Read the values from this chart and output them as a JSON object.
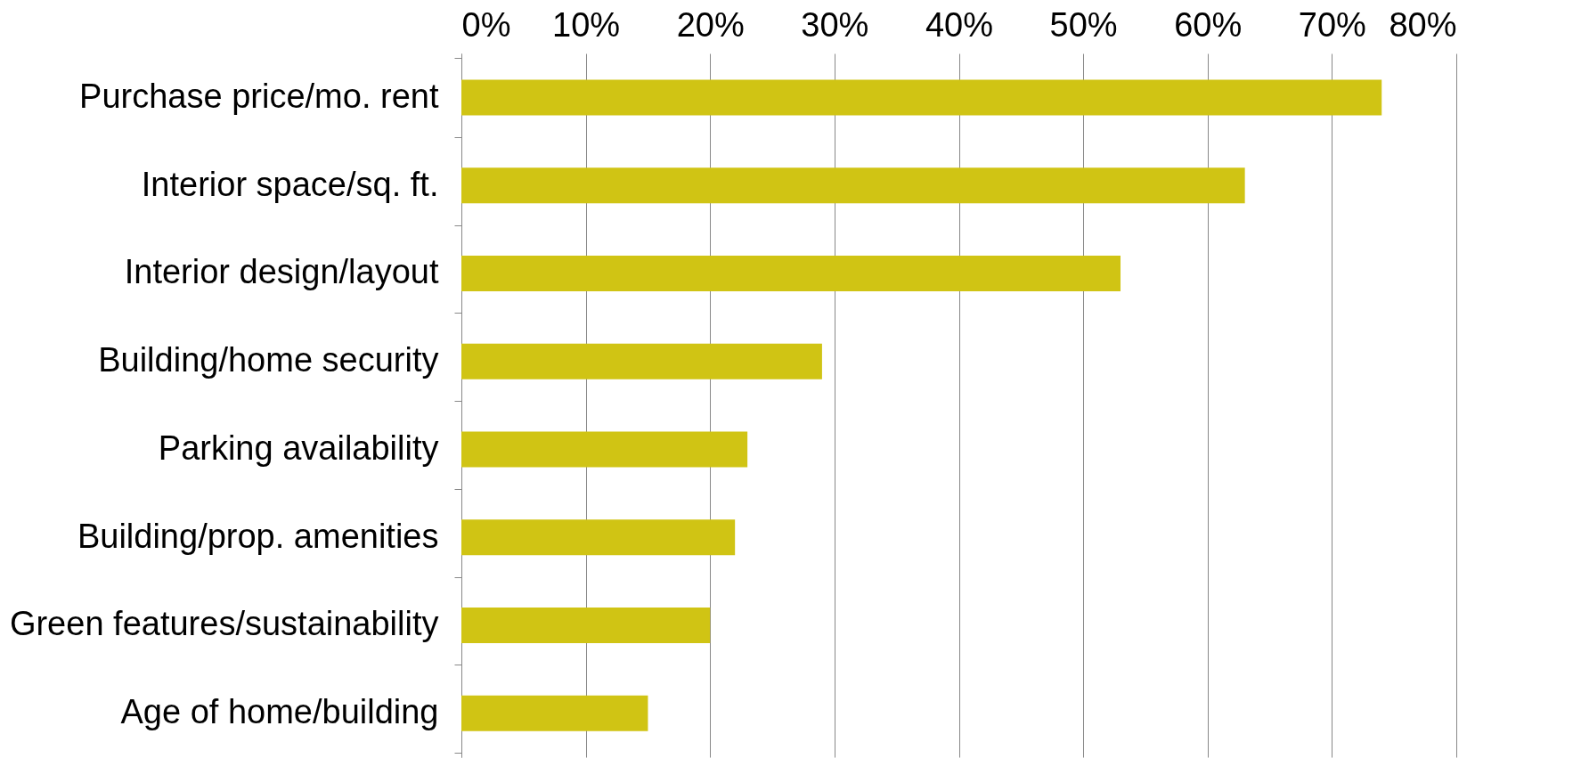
{
  "chart_data": {
    "type": "bar",
    "orientation": "horizontal",
    "categories": [
      "Purchase price/mo. rent",
      "Interior space/sq. ft.",
      "Interior design/layout",
      "Building/home security",
      "Parking availability",
      "Building/prop. amenities",
      "Green features/sustainability",
      "Age of home/building"
    ],
    "values": [
      74,
      63,
      53,
      29,
      23,
      22,
      20,
      15
    ],
    "color": "#d0c414",
    "xlim": [
      0,
      80
    ],
    "xticks": [
      {
        "value": 0,
        "label": "0%"
      },
      {
        "value": 10,
        "label": "10%"
      },
      {
        "value": 20,
        "label": "20%"
      },
      {
        "value": 30,
        "label": "30%"
      },
      {
        "value": 40,
        "label": "40%"
      },
      {
        "value": 50,
        "label": "50%"
      },
      {
        "value": 60,
        "label": "60%"
      },
      {
        "value": 70,
        "label": "70%"
      },
      {
        "value": 80,
        "label": "80%"
      }
    ],
    "grid": "x"
  }
}
